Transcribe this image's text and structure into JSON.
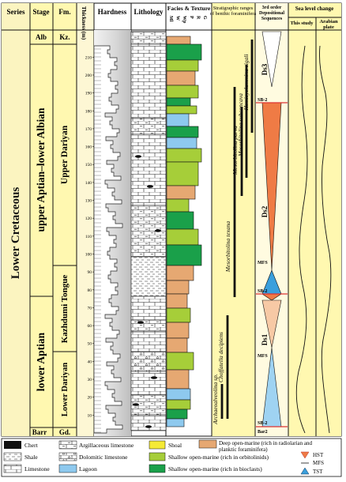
{
  "headers": {
    "series": "Series",
    "stage": "Stage",
    "formation": "Fm.",
    "thickness": "Thickness (m)",
    "hardness": "Hardness",
    "lithology": "Lithology",
    "facies_texture": "Facies & Texture",
    "facies_codes": [
      "Ml",
      "W",
      "Wp",
      "P",
      "R",
      "G"
    ],
    "benthic": "Stratigraphic ranges of benthic foraminifera",
    "depositional": "3rd order Depositional Sequences",
    "sea_level": "Sea level change",
    "this_study": "This study",
    "arabian_plate": "Arabian plate"
  },
  "series_label": "Lower Cretaceous",
  "stages": {
    "top": "Alb",
    "upper": "upper Aptian–lower Albian",
    "lower": "lower Aptian",
    "bottom": "Barr"
  },
  "formations": {
    "top": "Kz.",
    "upper_dariyan": "Upper Dariyan",
    "kazhdumi_tongue": "Kazhdumi Tongue",
    "lower_dariyan": "Lower Dariyan",
    "bottom": "Gd."
  },
  "thickness_ticks": [
    "210",
    "200",
    "190",
    "180",
    "170",
    "160",
    "150",
    "140",
    "130",
    "120",
    "110",
    "100",
    "90",
    "80",
    "70",
    "60",
    "50",
    "40",
    "30",
    "20",
    "10"
  ],
  "foraminifera": [
    {
      "name": "Archaeoalveolina sp."
    },
    {
      "name": "Choffatella decipiens"
    },
    {
      "name": "Mesorbitolina texana"
    },
    {
      "name": "Mesorbitolina parva"
    },
    {
      "name": "Mesorbitolina subconcava"
    },
    {
      "name": "Hemicyclammina sigali"
    }
  ],
  "sequences": [
    {
      "label": "Ds3"
    },
    {
      "label": "Ds2"
    },
    {
      "label": "Ds1"
    }
  ],
  "surfaces": [
    "SB-2",
    "MFS",
    "SB-2",
    "MFS",
    "SB-2",
    "Bar2"
  ],
  "colors": {
    "deep": "#e6a872",
    "shallow_orbitolinids": "#a6ce39",
    "shallow_bioclasts": "#1aa04a",
    "lagoon": "#8ec9ee",
    "shoal": "#f5ea35",
    "stage_band": "#fff8b0",
    "series_band": "#fbf4c0",
    "hst": "#ef7b45",
    "tst": "#3a9fdc"
  },
  "legend": {
    "chert": "Chert",
    "shale": "Shale",
    "limestone": "Limestone",
    "argillaceous": "Argillaceous limestone",
    "dolomitic": "Dolomitic limestone",
    "lagoon": "Lagoon",
    "shoal": "Shoal",
    "orbitolinids": "Shallow open-marine (rich in orbitolinids)",
    "bioclasts": "Shallow open-marine (rich in bioclasts)",
    "deep": "Deep open-marine (rich in radiolarian and planktic foraminifera)",
    "hst": "HST",
    "mfs": "MFS",
    "tst": "TST"
  }
}
